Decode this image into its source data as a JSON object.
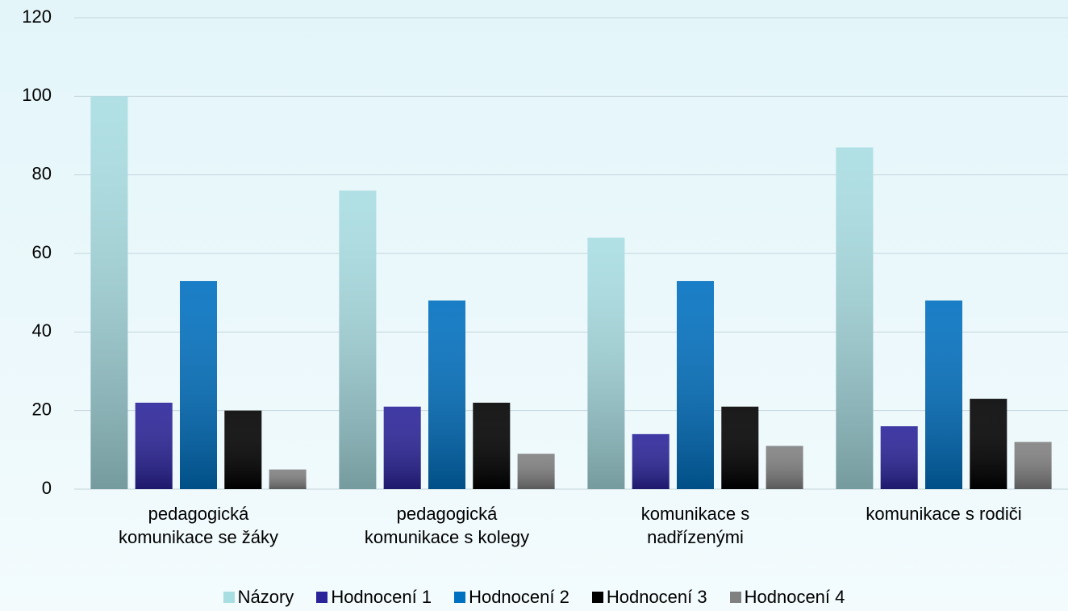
{
  "chart_data": {
    "type": "bar",
    "categories": [
      "pedagogická\nkomunikace se žáky",
      "pedagogická\nkomunikace s kolegy",
      "komunikace s\nnadřízenými",
      "komunikace s rodiči"
    ],
    "series": [
      {
        "name": "Názory",
        "color": "#a8dde2",
        "values": [
          100,
          76,
          64,
          87
        ]
      },
      {
        "name": "Hodnocení 1",
        "color": "#2a239a",
        "values": [
          22,
          21,
          14,
          16
        ]
      },
      {
        "name": "Hodnocení 2",
        "color": "#0070c0",
        "values": [
          53,
          48,
          53,
          48
        ]
      },
      {
        "name": "Hodnocení 3",
        "color": "#000000",
        "values": [
          20,
          22,
          21,
          23
        ]
      },
      {
        "name": "Hodnocení 4",
        "color": "#808080",
        "values": [
          5,
          9,
          11,
          12
        ]
      }
    ],
    "ylim": [
      0,
      120
    ],
    "yticks": [
      0,
      20,
      40,
      60,
      80,
      100,
      120
    ],
    "grid": true
  }
}
